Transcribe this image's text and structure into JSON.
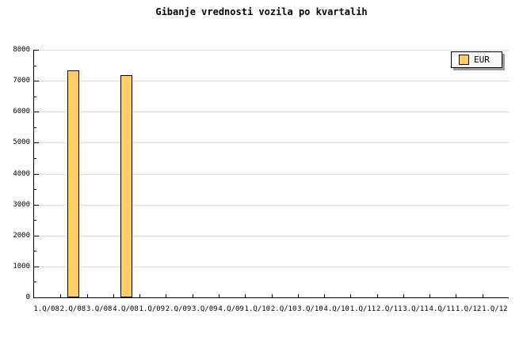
{
  "title": "Gibanje vrednosti vozila po kvartalih",
  "legend": {
    "label": "EUR"
  },
  "colors": {
    "bar_fill": "#FFCC66",
    "bar_border": "#000000",
    "grid": "#DDDDDD",
    "axis": "#000000",
    "legend_bg": "#F8F8F8",
    "legend_shadow": "#999999"
  },
  "chart_data": {
    "type": "bar",
    "title": "Gibanje vrednosti vozila po kvartalih",
    "categories": [
      "1.Q/08",
      "2.Q/08",
      "3.Q/08",
      "4.Q/08",
      "1.Q/09",
      "2.Q/09",
      "3.Q/09",
      "4.Q/09",
      "1.Q/10",
      "2.Q/10",
      "3.Q/10",
      "4.Q/10",
      "1.Q/11",
      "2.Q/11",
      "3.Q/11",
      "4.Q/11",
      "1.Q/12",
      "1.Q/12"
    ],
    "series": [
      {
        "name": "EUR",
        "color": "#FFCC66",
        "values": [
          null,
          7335,
          null,
          7185,
          null,
          null,
          null,
          null,
          null,
          null,
          null,
          null,
          null,
          null,
          null,
          null,
          null,
          null
        ]
      }
    ],
    "xlabel": "",
    "ylabel": "",
    "ylim": [
      0,
      8000
    ],
    "ytick_step": 1000,
    "y_minor_tick_step": 500,
    "grid": true,
    "legend_position": "top-right"
  }
}
